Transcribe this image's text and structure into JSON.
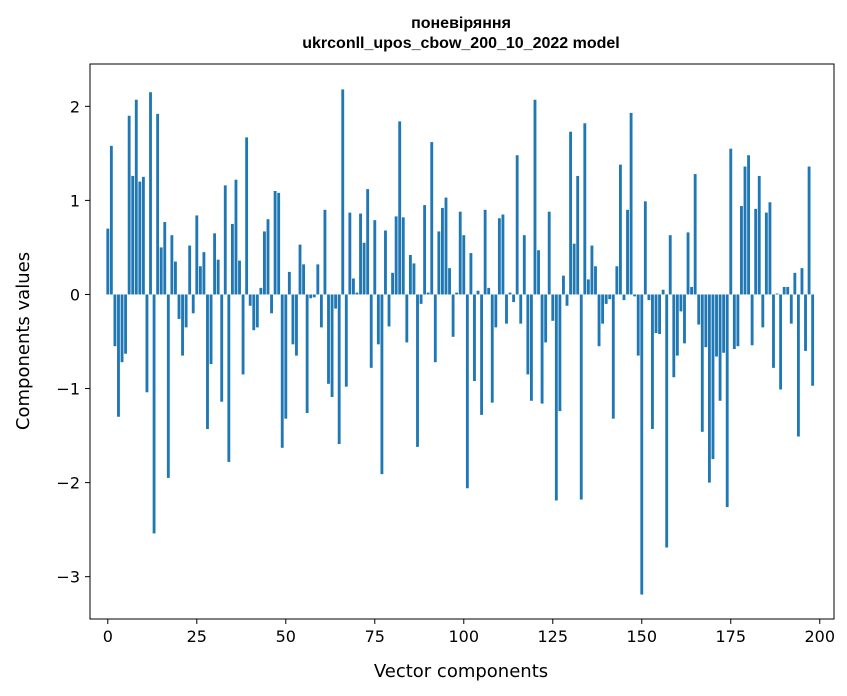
{
  "chart_data": {
    "type": "bar",
    "title": "поневіряння\nukrconll_upos_cbow_200_10_2022 model",
    "xlabel": "Vector components",
    "ylabel": "Components values",
    "xlim": [
      -5,
      204
    ],
    "ylim": [
      -3.45,
      2.45
    ],
    "xticks": [
      0,
      25,
      50,
      75,
      100,
      125,
      150,
      175,
      200
    ],
    "yticks": [
      -3,
      -2,
      -1,
      0,
      1,
      2
    ],
    "grid": false,
    "bar_color": "#1f77b4",
    "series": [
      {
        "values": [
          0.7,
          1.58,
          -0.55,
          -1.3,
          -0.72,
          -0.63,
          1.9,
          1.26,
          2.07,
          1.2,
          1.25,
          -1.04,
          2.15,
          -2.54,
          1.92,
          0.5,
          0.77,
          -1.95,
          0.63,
          0.35,
          -0.26,
          -0.65,
          -0.35,
          0.52,
          -0.2,
          0.84,
          0.3,
          0.45,
          -1.43,
          -0.74,
          0.65,
          0.37,
          -1.14,
          1.16,
          -1.78,
          0.75,
          1.22,
          0.36,
          -0.85,
          1.67,
          -0.12,
          -0.38,
          -0.35,
          0.07,
          0.67,
          0.8,
          -0.2,
          1.1,
          1.08,
          -1.63,
          -1.32,
          0.24,
          -0.53,
          -0.65,
          0.53,
          0.32,
          -1.26,
          -0.04,
          -0.03,
          0.32,
          -0.35,
          0.9,
          -0.95,
          -1.09,
          -0.15,
          -1.59,
          2.18,
          -0.98,
          0.87,
          0.17,
          0.02,
          0.86,
          0.55,
          1.12,
          -0.78,
          0.79,
          -0.53,
          -1.91,
          0.68,
          -0.34,
          0.23,
          0.83,
          1.84,
          0.82,
          -0.51,
          0.42,
          0.33,
          -1.62,
          -0.1,
          0.95,
          0.02,
          1.62,
          -0.72,
          0.67,
          0.92,
          1.03,
          0.28,
          -0.45,
          0.02,
          0.88,
          0.63,
          -2.06,
          0.44,
          -0.92,
          0.04,
          -1.28,
          0.9,
          0.07,
          -1.15,
          -0.35,
          0.81,
          0.85,
          -0.31,
          0.02,
          -0.08,
          1.48,
          -0.31,
          0.63,
          -0.85,
          -1.13,
          2.07,
          0.47,
          -1.16,
          -0.51,
          0.88,
          -0.28,
          -2.19,
          -1.24,
          0.2,
          -0.12,
          1.73,
          0.54,
          1.26,
          -2.18,
          1.82,
          0.16,
          0.52,
          0.3,
          -0.55,
          -0.31,
          -0.1,
          -0.05,
          -1.32,
          0.3,
          1.38,
          -0.06,
          0.9,
          1.93,
          -0.02,
          -0.65,
          -3.19,
          0.99,
          -0.06,
          -1.43,
          -0.41,
          -0.42,
          0.05,
          -2.69,
          0.63,
          -0.88,
          -0.65,
          -0.18,
          -0.52,
          0.66,
          0.08,
          1.28,
          -0.32,
          -1.46,
          -0.56,
          -2.0,
          -1.75,
          -0.66,
          -1.13,
          -0.62,
          -2.26,
          1.55,
          -0.58,
          -0.55,
          0.94,
          1.36,
          1.48,
          -0.54,
          0.91,
          1.26,
          -0.35,
          0.87,
          0.98,
          -0.78,
          0.01,
          -1.01,
          0.08,
          0.08,
          -0.31,
          0.23,
          -1.51,
          0.28,
          -0.6,
          1.36,
          -0.97
        ]
      }
    ]
  }
}
